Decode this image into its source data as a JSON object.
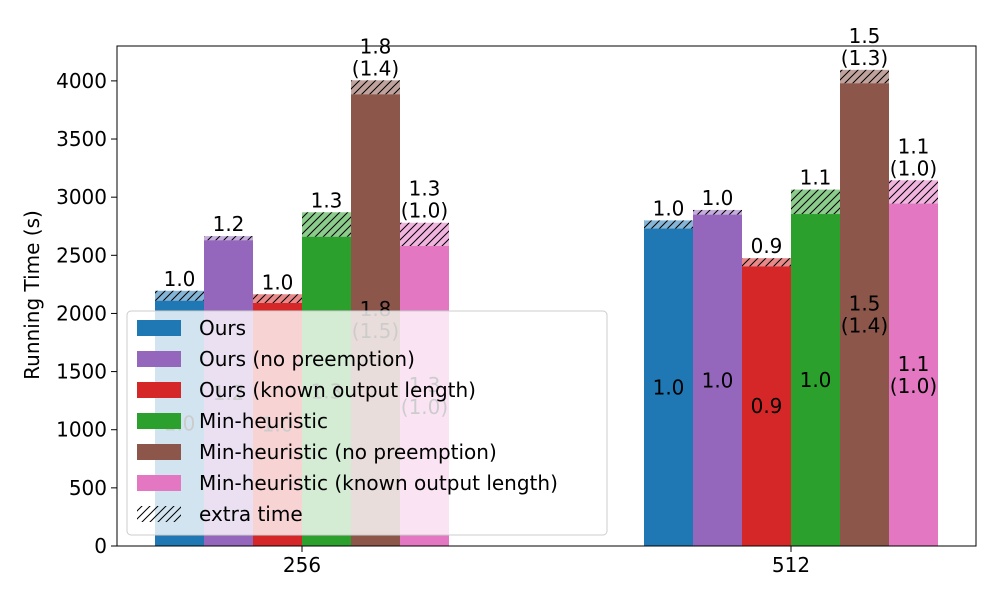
{
  "chart_data": {
    "type": "bar",
    "title": "",
    "xlabel": "",
    "ylabel": "Running Time (s)",
    "ylim": [
      0,
      4300
    ],
    "yticks": [
      0,
      500,
      1000,
      1500,
      2000,
      2500,
      3000,
      3500,
      4000
    ],
    "categories": [
      "256",
      "512"
    ],
    "grid": false,
    "legend_position": "lower-left",
    "extra_time_label": "extra time",
    "series": [
      {
        "name": "Ours",
        "color": "#1f77b4",
        "base": [
          2110,
          2730
        ],
        "total": [
          2195,
          2800
        ],
        "top_label": [
          [
            "1.0"
          ],
          [
            "1.0"
          ]
        ],
        "inside_label": [
          [
            "1.0"
          ],
          [
            "1.0"
          ]
        ]
      },
      {
        "name": "Ours (no preemption)",
        "color": "#9467bd",
        "base": [
          2630,
          2850
        ],
        "total": [
          2665,
          2890
        ],
        "top_label": [
          [
            "1.2"
          ],
          [
            "1.0"
          ]
        ],
        "inside_label": [
          [
            "1.2"
          ],
          [
            "1.0"
          ]
        ]
      },
      {
        "name": "Ours (known output length)",
        "color": "#d62728",
        "base": [
          2090,
          2405
        ],
        "total": [
          2165,
          2475
        ],
        "top_label": [
          [
            "1.0"
          ],
          [
            "0.9"
          ]
        ],
        "inside_label": [
          [
            "1.0"
          ],
          [
            "0.9"
          ]
        ]
      },
      {
        "name": "Min-heuristic",
        "color": "#2ca02c",
        "base": [
          2660,
          2855
        ],
        "total": [
          2870,
          3065
        ],
        "top_label": [
          [
            "1.3"
          ],
          [
            "1.1"
          ]
        ],
        "inside_label": [
          [
            "1.3"
          ],
          [
            "1.0"
          ]
        ]
      },
      {
        "name": "Min-heuristic (no preemption)",
        "color": "#8c564b",
        "base": [
          3885,
          3980
        ],
        "total": [
          4005,
          4095
        ],
        "top_label": [
          [
            "1.8",
            "(1.4)"
          ],
          [
            "1.5",
            "(1.3)"
          ]
        ],
        "inside_label": [
          [
            "1.8",
            "(1.5)"
          ],
          [
            "1.5",
            "(1.4)"
          ]
        ]
      },
      {
        "name": "Min-heuristic (known output length)",
        "color": "#e377c2",
        "base": [
          2580,
          2945
        ],
        "total": [
          2780,
          3145
        ],
        "top_label": [
          [
            "1.3",
            "(1.0)"
          ],
          [
            "1.1",
            "(1.0)"
          ]
        ],
        "inside_label": [
          [
            "1.3",
            "(1.0)"
          ],
          [
            "1.1",
            "(1.0)"
          ]
        ]
      }
    ]
  }
}
